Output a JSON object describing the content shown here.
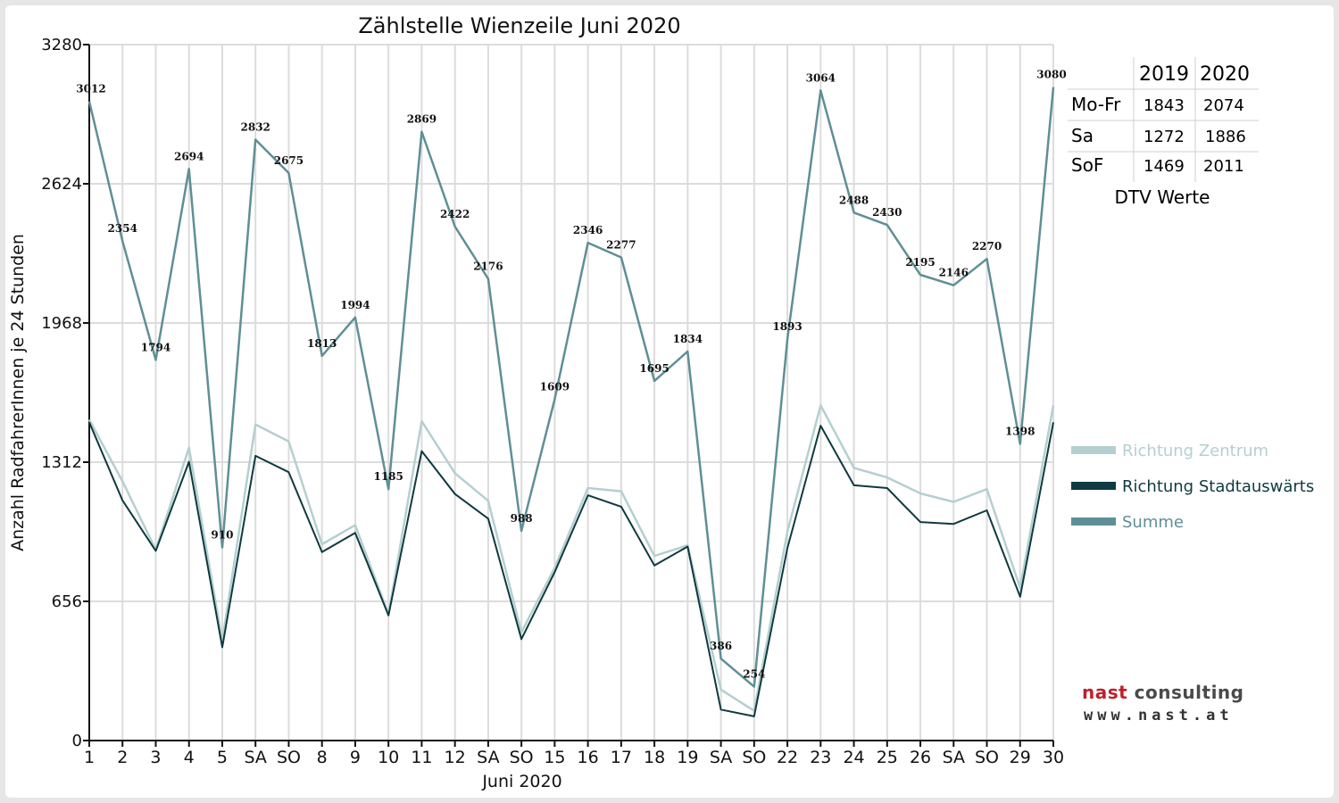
{
  "chart_data": {
    "type": "line",
    "title": "Zählstelle Wienzeile Juni 2020",
    "xlabel": "Juni 2020",
    "ylabel": "Anzahl RadfahrerInnen je 24 Stunden",
    "ylim": [
      0,
      3280
    ],
    "yticks": [
      "0",
      "656",
      "1312",
      "1968",
      "2624",
      "3280"
    ],
    "grid": true,
    "legend_position": "right",
    "categories": [
      "1",
      "2",
      "3",
      "4",
      "5",
      "SA",
      "SO",
      "8",
      "9",
      "10",
      "11",
      "12",
      "SA",
      "SO",
      "15",
      "16",
      "17",
      "18",
      "19",
      "SA",
      "SO",
      "22",
      "23",
      "24",
      "25",
      "26",
      "SA",
      "SO",
      "29",
      "30"
    ],
    "red_categories": [
      0,
      6,
      10,
      13,
      20,
      27
    ],
    "series": [
      {
        "name": "Richtung Zentrum",
        "color": "#b5cfd0",
        "values": [
          1512,
          1222,
          900,
          1380,
          470,
          1490,
          1410,
          925,
          1015,
          595,
          1505,
          1260,
          1130,
          510,
          815,
          1190,
          1175,
          870,
          920,
          240,
          140,
          985,
          1580,
          1285,
          1240,
          1165,
          1125,
          1185,
          720,
          1580
        ]
      },
      {
        "name": "Richtung Stadtauswärts",
        "color": "#0e3a40",
        "values": [
          1500,
          1132,
          894,
          1314,
          440,
          1342,
          1265,
          888,
          979,
          590,
          1364,
          1162,
          1046,
          478,
          794,
          1156,
          1102,
          825,
          914,
          146,
          114,
          908,
          1484,
          1203,
          1190,
          1030,
          1021,
          1085,
          678,
          1500
        ]
      },
      {
        "name": "Summe",
        "color": "#5f8f96",
        "values": [
          3012,
          2354,
          1794,
          2694,
          910,
          2832,
          2675,
          1813,
          1994,
          1185,
          2869,
          2422,
          2176,
          988,
          1609,
          2346,
          2277,
          1695,
          1834,
          386,
          254,
          1893,
          3064,
          2488,
          2430,
          2195,
          2146,
          2270,
          1398,
          3080
        ],
        "data_labels": [
          "3012",
          "2354",
          "1794",
          "2694",
          "910",
          "2832",
          "2675",
          "1813",
          "1994",
          "1185",
          "2869",
          "2422",
          "2176",
          "988",
          "1609",
          "2346",
          "2277",
          "1695",
          "1834",
          "386",
          "254",
          "1893",
          "3064",
          "2488",
          "2430",
          "2195",
          "2146",
          "2270",
          "1398",
          "3080"
        ]
      }
    ]
  },
  "dtv_table": {
    "headers": [
      "",
      "2019",
      "2020"
    ],
    "rows": [
      [
        "Mo-Fr",
        "1843",
        "2074"
      ],
      [
        "Sa",
        "1272",
        "1886"
      ],
      [
        "SoF",
        "1469",
        "2011"
      ]
    ],
    "caption": "DTV Werte"
  },
  "logo": {
    "brand_word1": "nast",
    "brand_word2": "consulting",
    "url": "www.nast.at"
  },
  "colors": {
    "red_day": "#e8141c",
    "grid": "#dcdcdc",
    "axis": "#111111"
  }
}
